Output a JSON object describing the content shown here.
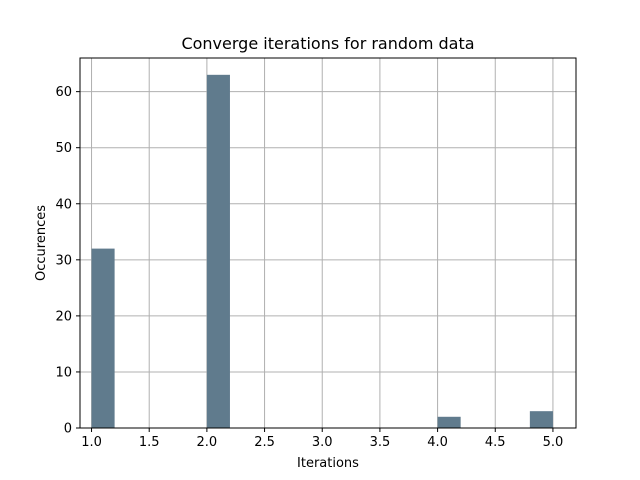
{
  "chart_data": {
    "type": "bar",
    "title": "Converge iterations for random data",
    "xlabel": "Iterations",
    "ylabel": "Occurences",
    "bars": [
      {
        "x_start": 1.0,
        "x_end": 1.2,
        "value": 32
      },
      {
        "x_start": 2.0,
        "x_end": 2.2,
        "value": 63
      },
      {
        "x_start": 4.0,
        "x_end": 4.2,
        "value": 2
      },
      {
        "x_start": 4.8,
        "x_end": 5.0,
        "value": 3
      }
    ],
    "xlim": [
      0.9,
      5.2
    ],
    "ylim": [
      0,
      66
    ],
    "xticks": [
      "1.0",
      "1.5",
      "2.0",
      "2.5",
      "3.0",
      "3.5",
      "4.0",
      "4.5",
      "5.0"
    ],
    "yticks": [
      "0",
      "10",
      "20",
      "30",
      "40",
      "50",
      "60"
    ],
    "grid": true,
    "bar_color": "#607b8d",
    "grid_color": "#b0b0b0"
  }
}
